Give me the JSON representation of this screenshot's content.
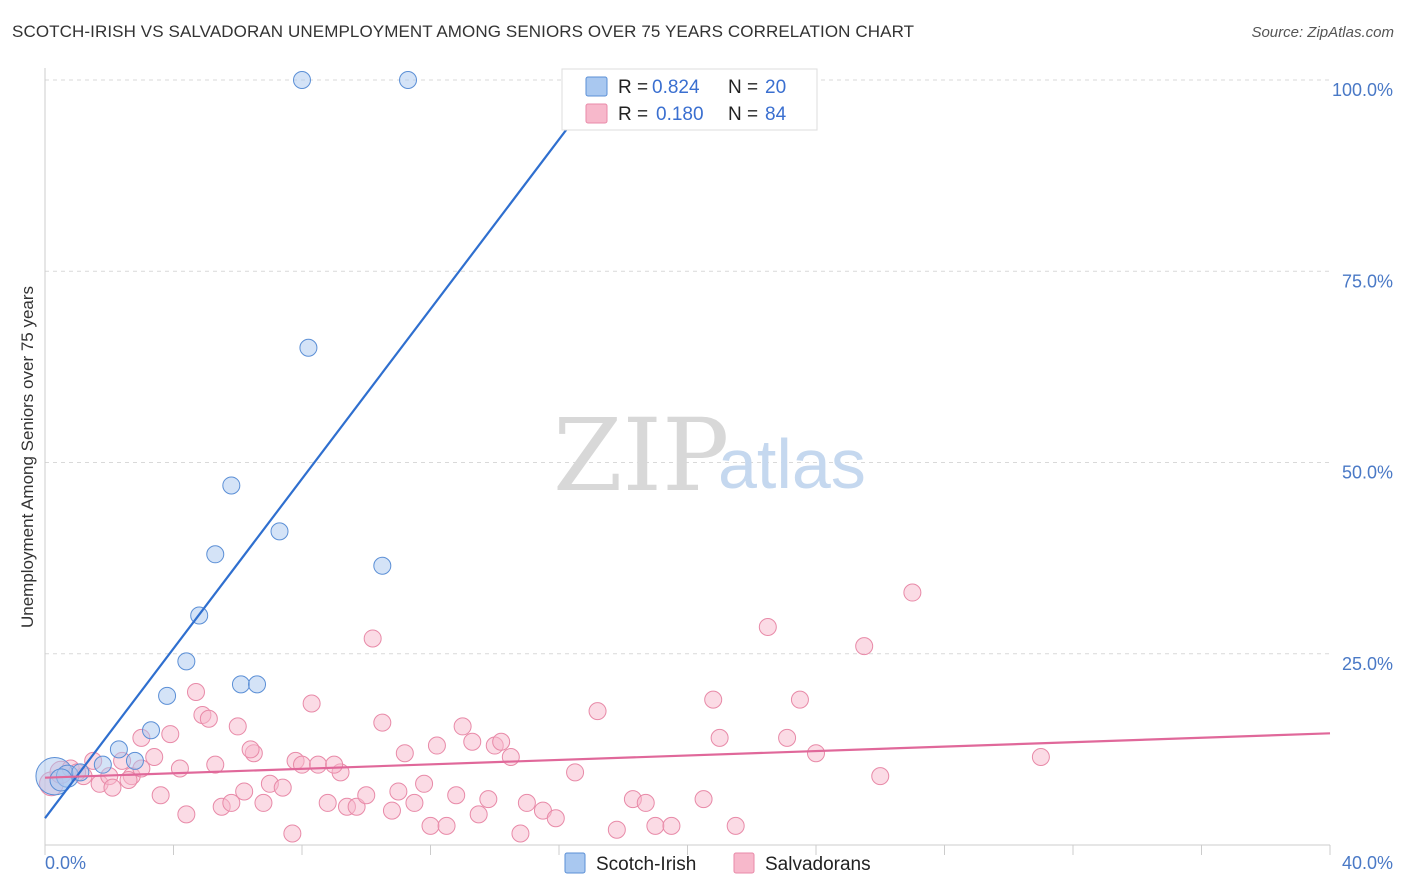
{
  "header": {
    "title": "SCOTCH-IRISH VS SALVADORAN UNEMPLOYMENT AMONG SENIORS OVER 75 YEARS CORRELATION CHART",
    "source": "Source: ZipAtlas.com"
  },
  "watermark": {
    "zip": "ZIP",
    "atlas": "atlas"
  },
  "legend_top": {
    "rows": [
      {
        "r_label": "R =",
        "r_value": "0.824",
        "n_label": "N =",
        "n_value": "20",
        "color": "#a9c8f0"
      },
      {
        "r_label": "R =",
        "r_value": "0.180",
        "n_label": "N =",
        "n_value": "84",
        "color": "#f7b8cb"
      }
    ]
  },
  "legend_bottom": {
    "items": [
      {
        "label": "Scotch-Irish",
        "color": "#a9c8f0"
      },
      {
        "label": "Salvadorans",
        "color": "#f7b8cb"
      }
    ]
  },
  "chart_data": {
    "type": "scatter",
    "title": "SCOTCH-IRISH VS SALVADORAN UNEMPLOYMENT AMONG SENIORS OVER 75 YEARS CORRELATION CHART",
    "xlabel": "",
    "ylabel": "Unemployment Among Seniors over 75 years",
    "xlim": [
      0,
      40
    ],
    "ylim": [
      0,
      100
    ],
    "x_ticks": [
      "0.0%",
      "40.0%"
    ],
    "y_ticks": [
      {
        "value": 100,
        "label": "100.0%"
      },
      {
        "value": 75,
        "label": "75.0%"
      },
      {
        "value": 50,
        "label": "50.0%"
      },
      {
        "value": 25,
        "label": "25.0%"
      }
    ],
    "grid": true,
    "legend_position": "top-center",
    "series": [
      {
        "name": "Scotch-Irish",
        "color": "#a9c8f0",
        "stroke": "#5b8fd6",
        "trend_color": "#2f6fcf",
        "trend": {
          "x0": 0,
          "y0": 3.5,
          "x1": 17.4,
          "y1": 100
        },
        "points": [
          [
            0.3,
            9.0,
            2.2
          ],
          [
            0.7,
            9.0,
            1.3
          ],
          [
            1.1,
            9.5,
            1
          ],
          [
            1.8,
            10.5,
            1
          ],
          [
            2.3,
            12.5,
            1
          ],
          [
            2.8,
            11.0,
            1
          ],
          [
            3.3,
            15.0,
            1
          ],
          [
            3.8,
            19.5,
            1
          ],
          [
            4.4,
            24.0,
            1
          ],
          [
            4.8,
            30.0,
            1
          ],
          [
            5.3,
            38.0,
            1
          ],
          [
            5.8,
            47.0,
            1
          ],
          [
            6.1,
            21.0,
            1
          ],
          [
            6.6,
            21.0,
            1
          ],
          [
            7.3,
            41.0,
            1
          ],
          [
            8.2,
            65.0,
            1
          ],
          [
            10.5,
            36.5,
            1
          ],
          [
            8.0,
            100.0,
            1
          ],
          [
            11.3,
            100.0,
            1
          ],
          [
            0.5,
            8.5,
            1.3
          ]
        ]
      },
      {
        "name": "Salvadorans",
        "color": "#f7b8cb",
        "stroke": "#e88aa8",
        "trend_color": "#e0689a",
        "trend": {
          "x0": 0,
          "y0": 8.8,
          "x1": 40,
          "y1": 14.6
        },
        "points": [
          [
            0.2,
            8.0,
            1.4
          ],
          [
            0.5,
            9.5,
            1.3
          ],
          [
            0.8,
            10.0,
            1
          ],
          [
            1.2,
            9.0,
            1
          ],
          [
            1.5,
            11.0,
            1
          ],
          [
            1.7,
            8.0,
            1
          ],
          [
            2.0,
            9.0,
            1
          ],
          [
            2.1,
            7.5,
            1
          ],
          [
            2.4,
            11.0,
            1
          ],
          [
            2.7,
            9.0,
            1
          ],
          [
            3.0,
            10.0,
            1
          ],
          [
            3.4,
            11.5,
            1
          ],
          [
            3.6,
            6.5,
            1
          ],
          [
            3.9,
            14.5,
            1
          ],
          [
            4.2,
            10.0,
            1
          ],
          [
            4.4,
            4.0,
            1
          ],
          [
            4.7,
            20.0,
            1
          ],
          [
            4.9,
            17.0,
            1
          ],
          [
            5.1,
            16.5,
            1
          ],
          [
            5.3,
            10.5,
            1
          ],
          [
            5.5,
            5.0,
            1
          ],
          [
            5.8,
            5.5,
            1
          ],
          [
            6.0,
            15.5,
            1
          ],
          [
            6.2,
            7.0,
            1
          ],
          [
            6.5,
            12.0,
            1
          ],
          [
            6.8,
            5.5,
            1
          ],
          [
            7.0,
            8.0,
            1
          ],
          [
            7.4,
            7.5,
            1
          ],
          [
            7.7,
            1.5,
            1
          ],
          [
            7.8,
            11.0,
            1
          ],
          [
            8.0,
            10.5,
            1
          ],
          [
            8.3,
            18.5,
            1
          ],
          [
            8.5,
            10.5,
            1
          ],
          [
            8.8,
            5.5,
            1
          ],
          [
            9.2,
            9.5,
            1
          ],
          [
            9.4,
            5.0,
            1
          ],
          [
            9.7,
            5.0,
            1
          ],
          [
            10.0,
            6.5,
            1
          ],
          [
            10.2,
            27.0,
            1
          ],
          [
            10.5,
            16.0,
            1
          ],
          [
            10.8,
            4.5,
            1
          ],
          [
            11.0,
            7.0,
            1
          ],
          [
            11.2,
            12.0,
            1
          ],
          [
            11.5,
            5.5,
            1
          ],
          [
            11.8,
            8.0,
            1
          ],
          [
            12.0,
            2.5,
            1
          ],
          [
            12.2,
            13.0,
            1
          ],
          [
            12.5,
            2.5,
            1
          ],
          [
            12.8,
            6.5,
            1
          ],
          [
            13.0,
            15.5,
            1
          ],
          [
            13.5,
            4.0,
            1
          ],
          [
            13.8,
            6.0,
            1
          ],
          [
            14.0,
            13.0,
            1
          ],
          [
            14.2,
            13.5,
            1
          ],
          [
            14.5,
            11.5,
            1
          ],
          [
            14.8,
            1.5,
            1
          ],
          [
            15.0,
            5.5,
            1
          ],
          [
            15.5,
            4.5,
            1
          ],
          [
            15.9,
            3.5,
            1
          ],
          [
            16.5,
            9.5,
            1
          ],
          [
            17.2,
            17.5,
            1
          ],
          [
            17.8,
            2.0,
            1
          ],
          [
            18.3,
            6.0,
            1
          ],
          [
            18.7,
            5.5,
            1
          ],
          [
            19.0,
            2.5,
            1
          ],
          [
            19.5,
            2.5,
            1
          ],
          [
            20.8,
            19.0,
            1
          ],
          [
            21.0,
            14.0,
            1
          ],
          [
            21.5,
            2.5,
            1
          ],
          [
            22.5,
            28.5,
            1
          ],
          [
            23.1,
            14.0,
            1
          ],
          [
            23.5,
            19.0,
            1
          ],
          [
            24.0,
            12.0,
            1
          ],
          [
            25.5,
            26.0,
            1
          ],
          [
            26.0,
            9.0,
            1
          ],
          [
            27.0,
            33.0,
            1
          ],
          [
            31.0,
            11.5,
            1
          ],
          [
            3.0,
            14.0,
            1
          ],
          [
            2.6,
            8.5,
            1
          ],
          [
            1.0,
            9.5,
            1
          ],
          [
            6.4,
            12.5,
            1
          ],
          [
            9.0,
            10.5,
            1
          ],
          [
            13.3,
            13.5,
            1
          ],
          [
            20.5,
            6.0,
            1
          ]
        ]
      }
    ]
  }
}
